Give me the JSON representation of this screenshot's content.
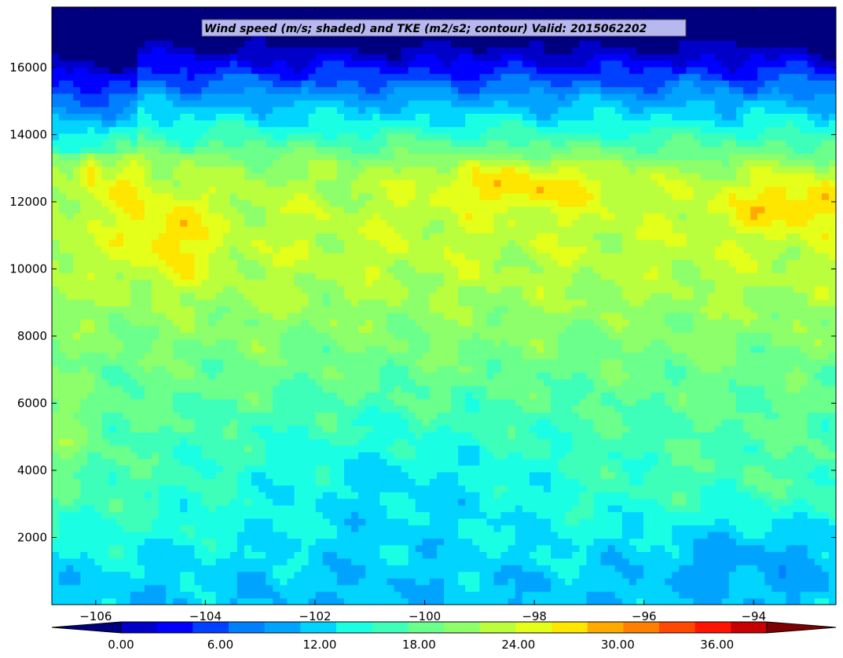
{
  "chart_data": {
    "type": "heatmap",
    "title": "Wind speed (m/s; shaded) and TKE (m2/s2; contour) Valid: 2015062202",
    "xlabel": "",
    "ylabel": "",
    "xlim": [
      -106.8,
      -92.5
    ],
    "ylim": [
      0,
      17800
    ],
    "x_ticks": [
      -106,
      -104,
      -102,
      -100,
      -98,
      -96,
      -94
    ],
    "x_tick_labels": [
      "−106",
      "−104",
      "−102",
      "−100",
      "−98",
      "−96",
      "−94"
    ],
    "y_ticks": [
      2000,
      4000,
      6000,
      8000,
      10000,
      12000,
      14000,
      16000
    ],
    "y_tick_labels": [
      "2000",
      "4000",
      "6000",
      "8000",
      "10000",
      "12000",
      "14000",
      "16000"
    ],
    "colorbar": {
      "levels": [
        0,
        3,
        6,
        9,
        12,
        15,
        18,
        21,
        24,
        27,
        30,
        33,
        36,
        39
      ],
      "tick_values": [
        0,
        6,
        12,
        18,
        24,
        30,
        36
      ],
      "tick_labels": [
        "0.00",
        "6.00",
        "12.00",
        "18.00",
        "24.00",
        "30.00",
        "36.00"
      ],
      "extend": "both",
      "colors": [
        "#00007f",
        "#0000c8",
        "#0000ff",
        "#0040ff",
        "#0080ff",
        "#00a4ff",
        "#00d4ff",
        "#1affe4",
        "#3dffba",
        "#6bff8c",
        "#8cff6b",
        "#baff3d",
        "#e4ff1a",
        "#ffe600",
        "#ffaa00",
        "#ff7f00",
        "#ff4800",
        "#ff1400",
        "#c80000",
        "#7f0000"
      ]
    },
    "grid": false
  }
}
